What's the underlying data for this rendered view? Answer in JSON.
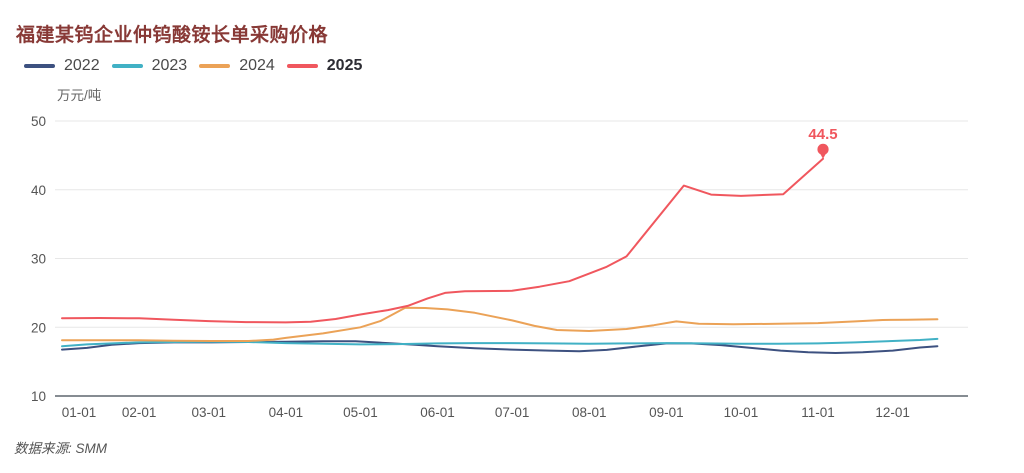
{
  "header": {
    "title": "福建某钨企业仲钨酸铵长单采购价格",
    "title_color": "#883936"
  },
  "footer": {
    "source": "数据来源: SMM"
  },
  "annotation": {
    "end_value_label": "44.5"
  },
  "colors": {
    "grid": "#e7e7e7",
    "axis_line": "#868c92",
    "tick_text": "#555555",
    "series_2022": "#3d5180",
    "series_2023": "#41b1c5",
    "series_2024": "#eba257",
    "series_2025": "#f0575e"
  },
  "chart_data": {
    "type": "line",
    "title": "福建某钨企业仲钨酸铵长单采购价格",
    "xlabel": "",
    "ylabel": "万元/吨",
    "ylim": [
      10,
      50
    ],
    "xlim_days": [
      0,
      364
    ],
    "y_ticks": [
      10,
      20,
      30,
      40,
      50
    ],
    "x_tick_labels": [
      "01-01",
      "02-01",
      "03-01",
      "04-01",
      "05-01",
      "06-01",
      "07-01",
      "08-01",
      "09-01",
      "10-01",
      "11-01",
      "12-01"
    ],
    "x_tick_days": [
      0,
      31,
      59,
      90,
      120,
      151,
      181,
      212,
      243,
      273,
      304,
      334
    ],
    "grid": true,
    "legend_position": "top-left",
    "x_unit": "day offset from 01-01",
    "series": [
      {
        "name": "2022",
        "color": "#3d5180",
        "bold_legend": false,
        "points": [
          [
            0,
            16.75
          ],
          [
            10,
            17.0
          ],
          [
            20,
            17.45
          ],
          [
            31,
            17.7
          ],
          [
            45,
            17.8
          ],
          [
            60,
            17.8
          ],
          [
            75,
            17.85
          ],
          [
            90,
            17.9
          ],
          [
            105,
            17.95
          ],
          [
            118,
            17.95
          ],
          [
            131,
            17.7
          ],
          [
            142,
            17.45
          ],
          [
            151,
            17.25
          ],
          [
            166,
            16.95
          ],
          [
            181,
            16.75
          ],
          [
            196,
            16.6
          ],
          [
            208,
            16.5
          ],
          [
            219,
            16.7
          ],
          [
            231,
            17.2
          ],
          [
            243,
            17.65
          ],
          [
            253,
            17.65
          ],
          [
            265,
            17.4
          ],
          [
            277,
            17.0
          ],
          [
            289,
            16.6
          ],
          [
            300,
            16.35
          ],
          [
            311,
            16.25
          ],
          [
            322,
            16.35
          ],
          [
            334,
            16.6
          ],
          [
            345,
            17.05
          ],
          [
            352,
            17.25
          ]
        ]
      },
      {
        "name": "2023",
        "color": "#41b1c5",
        "bold_legend": false,
        "points": [
          [
            0,
            17.25
          ],
          [
            10,
            17.5
          ],
          [
            20,
            17.65
          ],
          [
            31,
            17.8
          ],
          [
            45,
            17.85
          ],
          [
            60,
            17.9
          ],
          [
            75,
            17.85
          ],
          [
            90,
            17.7
          ],
          [
            105,
            17.6
          ],
          [
            120,
            17.5
          ],
          [
            135,
            17.55
          ],
          [
            151,
            17.65
          ],
          [
            166,
            17.7
          ],
          [
            181,
            17.7
          ],
          [
            196,
            17.65
          ],
          [
            212,
            17.6
          ],
          [
            227,
            17.65
          ],
          [
            243,
            17.7
          ],
          [
            258,
            17.65
          ],
          [
            273,
            17.6
          ],
          [
            288,
            17.6
          ],
          [
            304,
            17.65
          ],
          [
            319,
            17.8
          ],
          [
            334,
            18.0
          ],
          [
            345,
            18.15
          ],
          [
            352,
            18.3
          ]
        ]
      },
      {
        "name": "2024",
        "color": "#eba257",
        "bold_legend": false,
        "points": [
          [
            0,
            18.1
          ],
          [
            15,
            18.1
          ],
          [
            31,
            18.1
          ],
          [
            45,
            18.05
          ],
          [
            60,
            18.0
          ],
          [
            75,
            18.0
          ],
          [
            85,
            18.2
          ],
          [
            90,
            18.45
          ],
          [
            105,
            19.1
          ],
          [
            120,
            20.0
          ],
          [
            128,
            20.9
          ],
          [
            138,
            22.85
          ],
          [
            146,
            22.8
          ],
          [
            155,
            22.6
          ],
          [
            166,
            22.1
          ],
          [
            181,
            21.0
          ],
          [
            190,
            20.2
          ],
          [
            199,
            19.6
          ],
          [
            212,
            19.45
          ],
          [
            227,
            19.75
          ],
          [
            238,
            20.3
          ],
          [
            247,
            20.85
          ],
          [
            256,
            20.5
          ],
          [
            270,
            20.45
          ],
          [
            288,
            20.5
          ],
          [
            304,
            20.6
          ],
          [
            319,
            20.85
          ],
          [
            330,
            21.05
          ],
          [
            340,
            21.1
          ],
          [
            352,
            21.15
          ]
        ]
      },
      {
        "name": "2025",
        "color": "#f0575e",
        "bold_legend": true,
        "end_label": "44.5",
        "end_marker": "pin",
        "points": [
          [
            0,
            21.3
          ],
          [
            15,
            21.35
          ],
          [
            31,
            21.3
          ],
          [
            45,
            21.1
          ],
          [
            59,
            20.9
          ],
          [
            74,
            20.75
          ],
          [
            90,
            20.7
          ],
          [
            100,
            20.8
          ],
          [
            110,
            21.2
          ],
          [
            120,
            21.85
          ],
          [
            131,
            22.5
          ],
          [
            139,
            23.1
          ],
          [
            147,
            24.2
          ],
          [
            154,
            25.0
          ],
          [
            162,
            25.25
          ],
          [
            181,
            25.3
          ],
          [
            192,
            25.9
          ],
          [
            204,
            26.7
          ],
          [
            212,
            27.8
          ],
          [
            219,
            28.8
          ],
          [
            227,
            30.3
          ],
          [
            250,
            40.6
          ],
          [
            261,
            39.3
          ],
          [
            273,
            39.1
          ],
          [
            290,
            39.35
          ],
          [
            306,
            44.5
          ]
        ]
      }
    ]
  }
}
